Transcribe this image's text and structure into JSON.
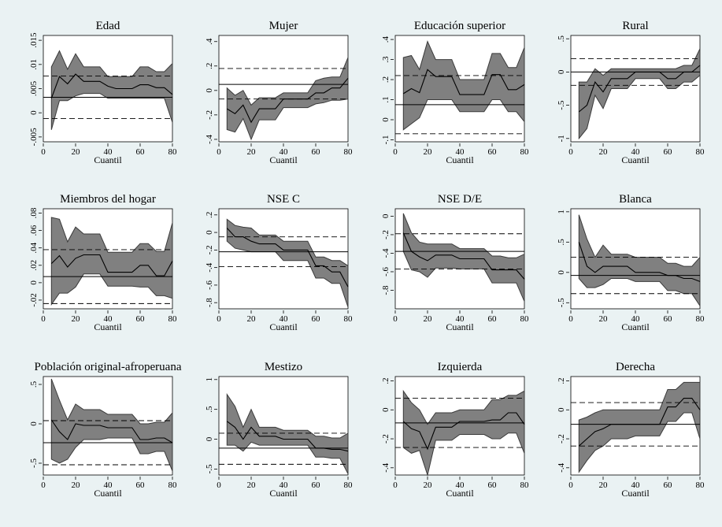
{
  "figure": {
    "background": "#eaf2f3",
    "band_color": "#808080",
    "line_color": "#000000"
  },
  "chart_data": [
    {
      "type": "line",
      "title": "Edad",
      "xlabel": "Cuantil",
      "ylabel": "",
      "xticks": [
        0,
        20,
        40,
        60,
        80
      ],
      "ylim": [
        -0.006,
        0.016
      ],
      "yticks": [
        -0.005,
        0,
        0.005,
        0.01,
        0.015
      ],
      "ytick_labels": [
        "-.005",
        "0",
        ".005",
        ".01",
        ".015"
      ],
      "x": [
        5,
        10,
        15,
        20,
        25,
        30,
        35,
        40,
        45,
        50,
        55,
        60,
        65,
        70,
        75,
        80
      ],
      "estimate": [
        0.003,
        0.0075,
        0.006,
        0.008,
        0.0065,
        0.0065,
        0.0065,
        0.0055,
        0.005,
        0.005,
        0.005,
        0.0058,
        0.0058,
        0.0052,
        0.0052,
        0.0038
      ],
      "ci_lower": [
        -0.0035,
        0.0025,
        0.0025,
        0.0035,
        0.004,
        0.004,
        0.004,
        0.003,
        0.003,
        0.003,
        0.003,
        0.003,
        0.003,
        0.003,
        0.003,
        -0.002
      ],
      "ci_upper": [
        0.0095,
        0.0128,
        0.009,
        0.0122,
        0.0095,
        0.0095,
        0.0095,
        0.0075,
        0.0075,
        0.0075,
        0.0075,
        0.0095,
        0.0095,
        0.0085,
        0.0085,
        0.0102
      ],
      "ols": 0.0032,
      "ols_lower": -0.0012,
      "ols_upper": 0.0076
    },
    {
      "type": "line",
      "title": "Mujer",
      "xlabel": "Cuantil",
      "ylabel": "",
      "xticks": [
        0,
        20,
        40,
        60,
        80
      ],
      "ylim": [
        -0.42,
        0.45
      ],
      "yticks": [
        -0.4,
        -0.2,
        0,
        0.2,
        0.4
      ],
      "ytick_labels": [
        "-.4",
        "-.2",
        "0",
        ".2",
        ".4"
      ],
      "x": [
        5,
        10,
        15,
        20,
        25,
        30,
        35,
        40,
        45,
        50,
        55,
        60,
        65,
        70,
        75,
        80
      ],
      "estimate": [
        -0.15,
        -0.19,
        -0.12,
        -0.26,
        -0.15,
        -0.15,
        -0.15,
        -0.07,
        -0.07,
        -0.07,
        -0.07,
        -0.02,
        -0.02,
        0.02,
        0.02,
        0.1
      ],
      "ci_lower": [
        -0.32,
        -0.34,
        -0.23,
        -0.4,
        -0.24,
        -0.24,
        -0.24,
        -0.14,
        -0.14,
        -0.14,
        -0.14,
        -0.11,
        -0.1,
        -0.08,
        -0.08,
        -0.07
      ],
      "ci_upper": [
        0.02,
        -0.04,
        0.0,
        -0.12,
        -0.06,
        -0.06,
        -0.06,
        -0.02,
        -0.02,
        -0.02,
        -0.02,
        0.08,
        0.1,
        0.11,
        0.11,
        0.27
      ],
      "ols": 0.05,
      "ols_lower": -0.07,
      "ols_upper": 0.18
    },
    {
      "type": "line",
      "title": "Educación superior",
      "xlabel": "Cuantil",
      "ylabel": "",
      "xticks": [
        0,
        20,
        40,
        60,
        80
      ],
      "ylim": [
        -0.11,
        0.42
      ],
      "yticks": [
        -0.1,
        0,
        0.1,
        0.2,
        0.3,
        0.4
      ],
      "ytick_labels": [
        "-.1",
        "0",
        ".1",
        ".2",
        ".3",
        ".4"
      ],
      "x": [
        5,
        10,
        15,
        20,
        25,
        30,
        35,
        40,
        45,
        50,
        55,
        60,
        65,
        70,
        75,
        80
      ],
      "estimate": [
        0.13,
        0.155,
        0.135,
        0.25,
        0.215,
        0.215,
        0.215,
        0.125,
        0.125,
        0.125,
        0.125,
        0.225,
        0.225,
        0.15,
        0.15,
        0.175
      ],
      "ci_lower": [
        -0.05,
        -0.02,
        0.01,
        0.1,
        0.1,
        0.1,
        0.1,
        0.04,
        0.04,
        0.04,
        0.04,
        0.1,
        0.1,
        0.04,
        0.04,
        -0.01
      ],
      "ci_upper": [
        0.31,
        0.32,
        0.25,
        0.39,
        0.3,
        0.3,
        0.3,
        0.2,
        0.2,
        0.2,
        0.2,
        0.33,
        0.33,
        0.26,
        0.26,
        0.36
      ],
      "ols": 0.075,
      "ols_lower": -0.07,
      "ols_upper": 0.22
    },
    {
      "type": "line",
      "title": "Rural",
      "xlabel": "Cuantil",
      "ylabel": "",
      "xticks": [
        0,
        20,
        40,
        60,
        80
      ],
      "ylim": [
        -1.05,
        0.55
      ],
      "yticks": [
        -1,
        -0.5,
        0,
        0.5
      ],
      "ytick_labels": [
        "-1",
        "-.5",
        "0",
        ".5"
      ],
      "x": [
        5,
        10,
        15,
        20,
        25,
        30,
        35,
        40,
        45,
        50,
        55,
        60,
        65,
        70,
        75,
        80
      ],
      "estimate": [
        -0.6,
        -0.5,
        -0.15,
        -0.3,
        -0.1,
        -0.1,
        -0.1,
        0.0,
        0.0,
        0.0,
        0.0,
        -0.1,
        -0.1,
        0.0,
        0.0,
        0.1
      ],
      "ci_lower": [
        -1.0,
        -0.85,
        -0.35,
        -0.55,
        -0.25,
        -0.25,
        -0.25,
        -0.1,
        -0.1,
        -0.1,
        -0.1,
        -0.25,
        -0.25,
        -0.15,
        -0.15,
        -0.05
      ],
      "ci_upper": [
        -0.15,
        -0.15,
        0.05,
        -0.05,
        0.05,
        0.05,
        0.05,
        0.05,
        0.05,
        0.05,
        0.05,
        0.05,
        0.05,
        0.1,
        0.1,
        0.35
      ],
      "ols": 0.0,
      "ols_lower": -0.2,
      "ols_upper": 0.2
    },
    {
      "type": "line",
      "title": "Miembros del hogar",
      "xlabel": "Cuantil",
      "ylabel": "",
      "xticks": [
        0,
        20,
        40,
        60,
        80
      ],
      "ylim": [
        -0.03,
        0.085
      ],
      "yticks": [
        -0.02,
        0,
        0.02,
        0.04,
        0.06,
        0.08
      ],
      "ytick_labels": [
        "-.02",
        "0",
        ".02",
        ".04",
        ".06",
        ".08"
      ],
      "x": [
        5,
        10,
        15,
        20,
        25,
        30,
        35,
        40,
        45,
        50,
        55,
        60,
        65,
        70,
        75,
        80
      ],
      "estimate": [
        0.022,
        0.031,
        0.018,
        0.028,
        0.032,
        0.032,
        0.032,
        0.012,
        0.012,
        0.012,
        0.012,
        0.02,
        0.02,
        0.008,
        0.008,
        0.025
      ],
      "ci_lower": [
        -0.025,
        -0.012,
        -0.012,
        -0.005,
        0.01,
        0.01,
        0.01,
        -0.004,
        -0.004,
        -0.004,
        -0.004,
        -0.005,
        -0.005,
        -0.015,
        -0.015,
        -0.018
      ],
      "ci_upper": [
        0.075,
        0.073,
        0.047,
        0.064,
        0.056,
        0.056,
        0.056,
        0.035,
        0.035,
        0.035,
        0.035,
        0.045,
        0.045,
        0.036,
        0.036,
        0.069
      ],
      "ols": 0.007,
      "ols_lower": -0.024,
      "ols_upper": 0.038
    },
    {
      "type": "line",
      "title": "NSE C",
      "xlabel": "Cuantil",
      "ylabel": "",
      "xticks": [
        0,
        20,
        40,
        60,
        80
      ],
      "ylim": [
        -0.87,
        0.27
      ],
      "yticks": [
        -0.8,
        -0.6,
        -0.4,
        -0.2,
        0,
        0.2
      ],
      "ytick_labels": [
        "-.8",
        "-.6",
        "-.4",
        "-.2",
        "0",
        ".2"
      ],
      "x": [
        5,
        10,
        15,
        20,
        25,
        30,
        35,
        40,
        45,
        50,
        55,
        60,
        65,
        70,
        75,
        80
      ],
      "estimate": [
        0.05,
        -0.05,
        -0.05,
        -0.1,
        -0.13,
        -0.13,
        -0.13,
        -0.2,
        -0.2,
        -0.2,
        -0.2,
        -0.38,
        -0.38,
        -0.45,
        -0.45,
        -0.62
      ],
      "ci_lower": [
        -0.1,
        -0.18,
        -0.2,
        -0.22,
        -0.22,
        -0.22,
        -0.22,
        -0.32,
        -0.32,
        -0.32,
        -0.32,
        -0.52,
        -0.52,
        -0.58,
        -0.58,
        -0.85
      ],
      "ci_upper": [
        0.15,
        0.08,
        0.06,
        0.05,
        -0.03,
        -0.03,
        -0.03,
        -0.1,
        -0.1,
        -0.1,
        -0.1,
        -0.28,
        -0.28,
        -0.32,
        -0.32,
        -0.38
      ],
      "ols": -0.22,
      "ols_lower": -0.39,
      "ols_upper": -0.05
    },
    {
      "type": "line",
      "title": "NSE D/E",
      "xlabel": "Cuantil",
      "ylabel": "",
      "xticks": [
        0,
        20,
        40,
        60,
        80
      ],
      "ylim": [
        -1.0,
        0.08
      ],
      "yticks": [
        -0.8,
        -0.6,
        -0.4,
        -0.2,
        0
      ],
      "ytick_labels": [
        "-.8",
        "-.6",
        "-.4",
        "-.2",
        "0"
      ],
      "x": [
        5,
        10,
        15,
        20,
        25,
        30,
        35,
        40,
        45,
        50,
        55,
        60,
        65,
        70,
        75,
        80
      ],
      "estimate": [
        -0.18,
        -0.38,
        -0.44,
        -0.48,
        -0.42,
        -0.42,
        -0.42,
        -0.46,
        -0.46,
        -0.46,
        -0.46,
        -0.58,
        -0.58,
        -0.58,
        -0.58,
        -0.68
      ],
      "ci_lower": [
        -0.38,
        -0.58,
        -0.6,
        -0.66,
        -0.56,
        -0.56,
        -0.56,
        -0.57,
        -0.57,
        -0.57,
        -0.57,
        -0.72,
        -0.72,
        -0.72,
        -0.72,
        -0.92
      ],
      "ci_upper": [
        0.03,
        -0.18,
        -0.28,
        -0.3,
        -0.3,
        -0.3,
        -0.3,
        -0.35,
        -0.35,
        -0.35,
        -0.35,
        -0.43,
        -0.43,
        -0.45,
        -0.45,
        -0.41
      ],
      "ols": -0.38,
      "ols_lower": -0.57,
      "ols_upper": -0.19
    },
    {
      "type": "line",
      "title": "Blanca",
      "xlabel": "Cuantil",
      "ylabel": "",
      "xticks": [
        0,
        20,
        40,
        60,
        80
      ],
      "ylim": [
        -0.6,
        1.05
      ],
      "yticks": [
        -0.5,
        0,
        0.5,
        1
      ],
      "ytick_labels": [
        "-.5",
        "0",
        ".5",
        "1"
      ],
      "x": [
        5,
        10,
        15,
        20,
        25,
        30,
        35,
        40,
        45,
        50,
        55,
        60,
        65,
        70,
        75,
        80
      ],
      "estimate": [
        0.5,
        0.1,
        0.0,
        0.1,
        0.1,
        0.1,
        0.1,
        0.0,
        0.0,
        0.0,
        0.0,
        -0.05,
        -0.05,
        -0.1,
        -0.1,
        -0.15
      ],
      "ci_lower": [
        -0.1,
        -0.25,
        -0.25,
        -0.2,
        -0.1,
        -0.1,
        -0.1,
        -0.15,
        -0.15,
        -0.15,
        -0.15,
        -0.3,
        -0.3,
        -0.35,
        -0.35,
        -0.55
      ],
      "ci_upper": [
        0.95,
        0.55,
        0.25,
        0.45,
        0.3,
        0.3,
        0.3,
        0.25,
        0.25,
        0.25,
        0.25,
        0.15,
        0.15,
        0.1,
        0.1,
        0.25
      ],
      "ols": -0.05,
      "ols_lower": -0.35,
      "ols_upper": 0.25
    },
    {
      "type": "line",
      "title": "Población original-afroperuana",
      "xlabel": "Cuantil",
      "ylabel": "",
      "xticks": [
        0,
        20,
        40,
        60,
        80
      ],
      "ylim": [
        -0.65,
        0.6
      ],
      "yticks": [
        -0.5,
        0,
        0.5
      ],
      "ytick_labels": [
        "-.5",
        "0",
        ".5"
      ],
      "x": [
        5,
        10,
        15,
        20,
        25,
        30,
        35,
        40,
        45,
        50,
        55,
        60,
        65,
        70,
        75,
        80
      ],
      "estimate": [
        0.05,
        -0.1,
        -0.2,
        0.0,
        -0.02,
        -0.02,
        -0.02,
        -0.05,
        -0.05,
        -0.05,
        -0.05,
        -0.2,
        -0.2,
        -0.18,
        -0.18,
        -0.24
      ],
      "ci_lower": [
        -0.45,
        -0.5,
        -0.45,
        -0.3,
        -0.2,
        -0.2,
        -0.2,
        -0.18,
        -0.18,
        -0.18,
        -0.18,
        -0.38,
        -0.38,
        -0.35,
        -0.35,
        -0.6
      ],
      "ci_upper": [
        0.57,
        0.3,
        0.05,
        0.25,
        0.18,
        0.18,
        0.18,
        0.12,
        0.12,
        0.12,
        0.12,
        0.0,
        0.0,
        0.02,
        0.02,
        0.14
      ],
      "ols": -0.24,
      "ols_lower": -0.52,
      "ols_upper": 0.04
    },
    {
      "type": "line",
      "title": "Mestizo",
      "xlabel": "Cuantil",
      "ylabel": "",
      "xticks": [
        0,
        20,
        40,
        60,
        80
      ],
      "ylim": [
        -0.6,
        1.05
      ],
      "yticks": [
        -0.5,
        0,
        0.5,
        1
      ],
      "ytick_labels": [
        "-.5",
        "0",
        ".5",
        "1"
      ],
      "x": [
        5,
        10,
        15,
        20,
        25,
        30,
        35,
        40,
        45,
        50,
        55,
        60,
        65,
        70,
        75,
        80
      ],
      "estimate": [
        0.3,
        0.2,
        0.0,
        0.2,
        0.05,
        0.05,
        0.05,
        0.0,
        0.0,
        0.0,
        0.0,
        -0.15,
        -0.15,
        -0.17,
        -0.17,
        -0.2
      ],
      "ci_lower": [
        -0.1,
        -0.1,
        -0.2,
        -0.05,
        -0.1,
        -0.1,
        -0.1,
        -0.1,
        -0.1,
        -0.1,
        -0.1,
        -0.3,
        -0.3,
        -0.32,
        -0.32,
        -0.58
      ],
      "ci_upper": [
        0.75,
        0.55,
        0.2,
        0.5,
        0.2,
        0.2,
        0.2,
        0.15,
        0.15,
        0.15,
        0.15,
        0.05,
        0.05,
        0.02,
        0.02,
        0.1
      ],
      "ols": -0.15,
      "ols_lower": -0.42,
      "ols_upper": 0.1
    },
    {
      "type": "line",
      "title": "Izquierda",
      "xlabel": "Cuantil",
      "ylabel": "",
      "xticks": [
        0,
        20,
        40,
        60,
        80
      ],
      "ylim": [
        -0.45,
        0.23
      ],
      "yticks": [
        -0.4,
        -0.2,
        0,
        0.2
      ],
      "ytick_labels": [
        "-.4",
        "-.2",
        "0",
        ".2"
      ],
      "x": [
        5,
        10,
        15,
        20,
        25,
        30,
        35,
        40,
        45,
        50,
        55,
        60,
        65,
        70,
        75,
        80
      ],
      "estimate": [
        -0.08,
        -0.13,
        -0.15,
        -0.27,
        -0.12,
        -0.12,
        -0.12,
        -0.08,
        -0.08,
        -0.08,
        -0.08,
        -0.07,
        -0.07,
        -0.02,
        -0.02,
        -0.1
      ],
      "ci_lower": [
        -0.26,
        -0.3,
        -0.28,
        -0.45,
        -0.21,
        -0.21,
        -0.21,
        -0.17,
        -0.17,
        -0.17,
        -0.17,
        -0.2,
        -0.2,
        -0.16,
        -0.16,
        -0.3
      ],
      "ci_upper": [
        0.13,
        0.05,
        0.0,
        -0.1,
        -0.02,
        -0.02,
        -0.02,
        0.0,
        0.0,
        0.0,
        0.0,
        0.07,
        0.07,
        0.1,
        0.1,
        0.13
      ],
      "ols": -0.09,
      "ols_lower": -0.26,
      "ols_upper": 0.08
    },
    {
      "type": "line",
      "title": "Derecha",
      "xlabel": "Cuantil",
      "ylabel": "",
      "xticks": [
        0,
        20,
        40,
        60,
        80
      ],
      "ylim": [
        -0.45,
        0.23
      ],
      "yticks": [
        -0.4,
        -0.2,
        0,
        0.2
      ],
      "ytick_labels": [
        "-.4",
        "-.2",
        "0",
        ".2"
      ],
      "x": [
        5,
        10,
        15,
        20,
        25,
        30,
        35,
        40,
        45,
        50,
        55,
        60,
        65,
        70,
        75,
        80
      ],
      "estimate": [
        -0.25,
        -0.2,
        -0.15,
        -0.13,
        -0.1,
        -0.1,
        -0.1,
        -0.1,
        -0.1,
        -0.1,
        -0.1,
        0.02,
        0.02,
        0.08,
        0.08,
        0.0
      ],
      "ci_lower": [
        -0.43,
        -0.35,
        -0.28,
        -0.25,
        -0.2,
        -0.2,
        -0.2,
        -0.18,
        -0.18,
        -0.18,
        -0.18,
        -0.08,
        -0.08,
        -0.02,
        -0.02,
        -0.2
      ],
      "ci_upper": [
        -0.07,
        -0.05,
        -0.02,
        0.0,
        0.0,
        0.0,
        0.0,
        0.0,
        0.0,
        0.0,
        0.0,
        0.14,
        0.14,
        0.19,
        0.19,
        0.19
      ],
      "ols": -0.1,
      "ols_lower": -0.25,
      "ols_upper": 0.05
    }
  ]
}
